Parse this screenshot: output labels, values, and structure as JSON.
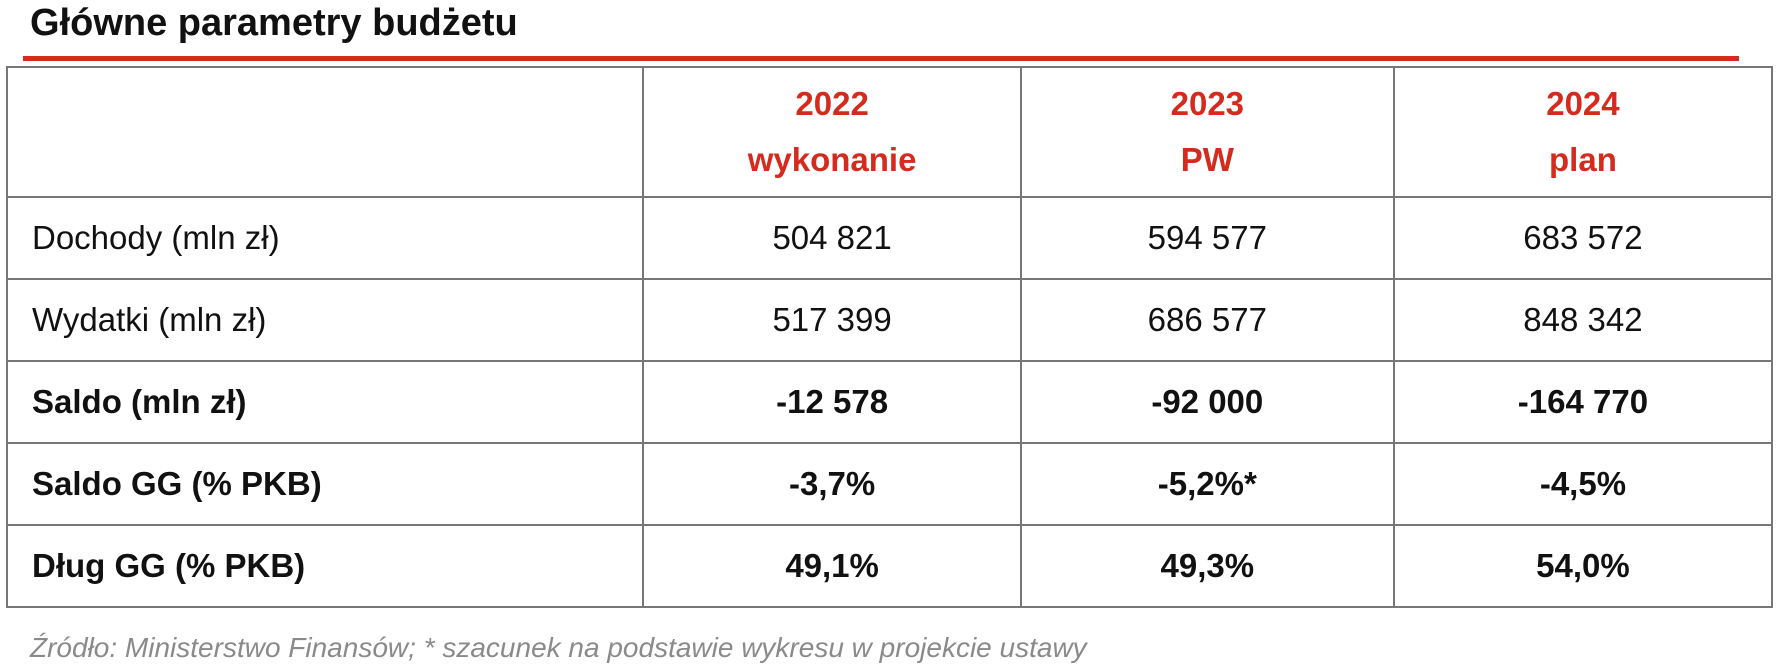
{
  "header": {
    "title": "Główne parametry budżetu"
  },
  "table": {
    "columns": [
      {
        "year": "2022",
        "label": "wykonanie"
      },
      {
        "year": "2023",
        "label": "PW"
      },
      {
        "year": "2024",
        "label": "plan"
      }
    ],
    "rows": [
      [
        "Dochody (mln zł)",
        "504 821",
        "594 577",
        "683 572"
      ],
      [
        "Wydatki (mln zł)",
        "517 399",
        "686 577",
        "848 342"
      ],
      [
        "Saldo (mln zł)",
        "-12 578",
        "-92 000",
        "-164 770"
      ],
      [
        "Saldo GG (% PKB)",
        "-3,7%",
        "-5,2%*",
        "-4,5%"
      ],
      [
        "Dług GG (% PKB)",
        "49,1%",
        "49,3%",
        "54,0%"
      ]
    ]
  },
  "footer": {
    "source": "Źródło: Ministerstwo Finansów; * szacunek na podstawie wykresu w projekcie ustawy"
  }
}
